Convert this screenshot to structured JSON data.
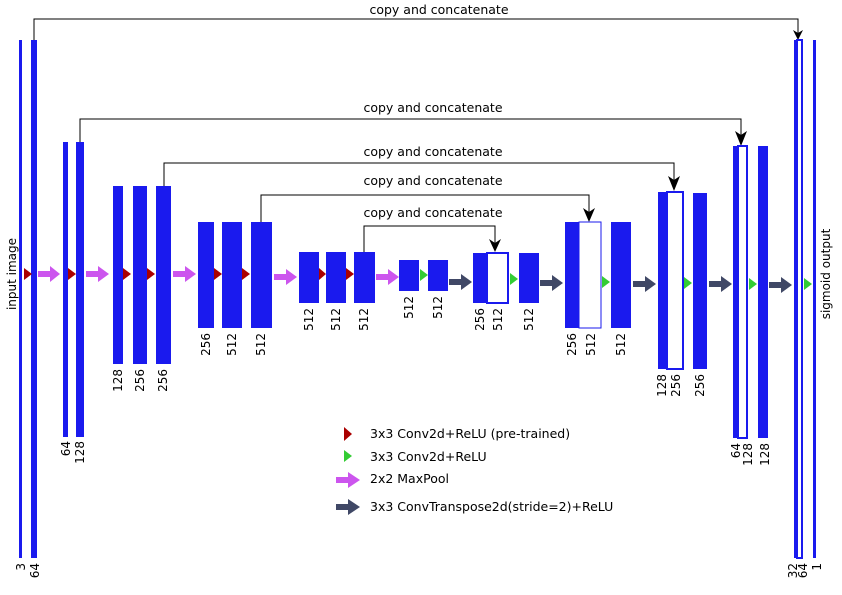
{
  "diagram": {
    "side_labels": {
      "input": "input image",
      "output": "sigmoid output"
    },
    "skip_label": "copy and concatenate",
    "channels": {
      "enc1": [
        "3",
        "64"
      ],
      "enc2": [
        "64",
        "128"
      ],
      "enc3": [
        "128",
        "256",
        "256"
      ],
      "enc4": [
        "256",
        "512",
        "512"
      ],
      "enc5": [
        "512",
        "512",
        "512"
      ],
      "bottleneck": [
        "512",
        "512"
      ],
      "dec1": [
        "256",
        "512",
        "512"
      ],
      "dec2": [
        "256",
        "512",
        "512"
      ],
      "dec3": [
        "128",
        "256",
        "256"
      ],
      "dec4": [
        "64",
        "128",
        "128"
      ],
      "dec5": [
        "32",
        "64",
        "1"
      ]
    },
    "legend": [
      {
        "label": "3x3 Conv2d+ReLU (pre-trained)",
        "icon": "red-triangle-icon",
        "color": "#aa0000"
      },
      {
        "label": "3x3 Conv2d+ReLU",
        "icon": "green-triangle-icon",
        "color": "#33cc33"
      },
      {
        "label": "2x2 MaxPool",
        "icon": "purple-arrow-icon",
        "color": "#cc55ee"
      },
      {
        "label": "3x3 ConvTranspose2d(stride=2)+ReLU",
        "icon": "dark-arrow-icon",
        "color": "#404866"
      }
    ],
    "colors": {
      "block": "#1a1aee",
      "pretrained": "#aa0000",
      "conv": "#33cc33",
      "pool": "#cc55ee",
      "upconv": "#404866"
    }
  }
}
